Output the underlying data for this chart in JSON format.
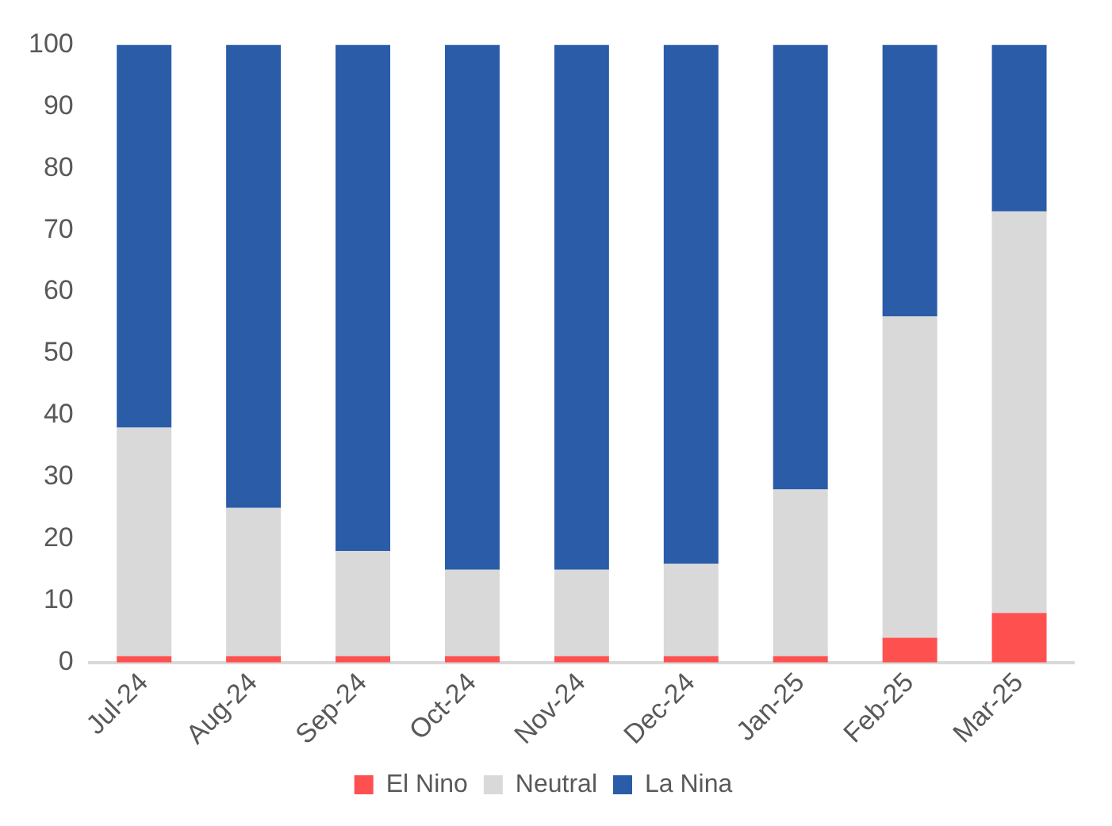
{
  "chart_data": {
    "type": "bar",
    "stacked": true,
    "categories": [
      "Jul-24",
      "Aug-24",
      "Sep-24",
      "Oct-24",
      "Nov-24",
      "Dec-24",
      "Jan-25",
      "Feb-25",
      "Mar-25"
    ],
    "series": [
      {
        "name": "El Nino",
        "color": "#ff5050",
        "values": [
          1,
          1,
          1,
          1,
          1,
          1,
          1,
          4,
          8
        ]
      },
      {
        "name": "Neutral",
        "color": "#d9d9d9",
        "values": [
          37,
          24,
          17,
          14,
          14,
          15,
          27,
          52,
          65
        ]
      },
      {
        "name": "La Nina",
        "color": "#2a5ca8",
        "values": [
          62,
          75,
          82,
          85,
          85,
          84,
          72,
          44,
          27
        ]
      }
    ],
    "ylim": [
      0,
      100
    ],
    "yticks": [
      0,
      10,
      20,
      30,
      40,
      50,
      60,
      70,
      80,
      90,
      100
    ],
    "grid": false,
    "legend": "bottom"
  }
}
